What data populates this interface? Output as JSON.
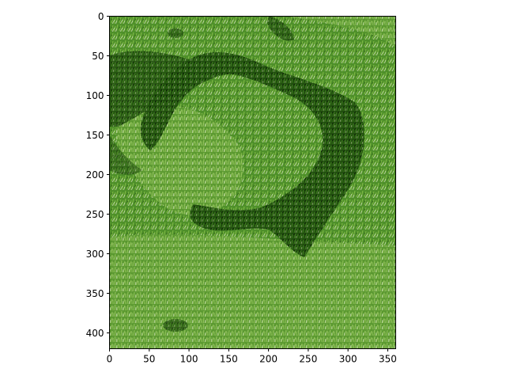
{
  "image": {
    "description_colors": {
      "grass_light": "#6fa83a",
      "grass_mid": "#4a8a25",
      "grass_dark": "#1f4a0e",
      "grass_shadow": "#0f2a06",
      "highlight": "#c9d8a8"
    }
  },
  "axes": {
    "x_ticks": [
      "0",
      "50",
      "100",
      "150",
      "200",
      "250",
      "300",
      "350"
    ],
    "y_ticks": [
      "0",
      "50",
      "100",
      "150",
      "200",
      "250",
      "300",
      "350",
      "400"
    ],
    "x_range": [
      0,
      360
    ],
    "y_range": [
      0,
      420
    ],
    "y_inverted": true
  }
}
